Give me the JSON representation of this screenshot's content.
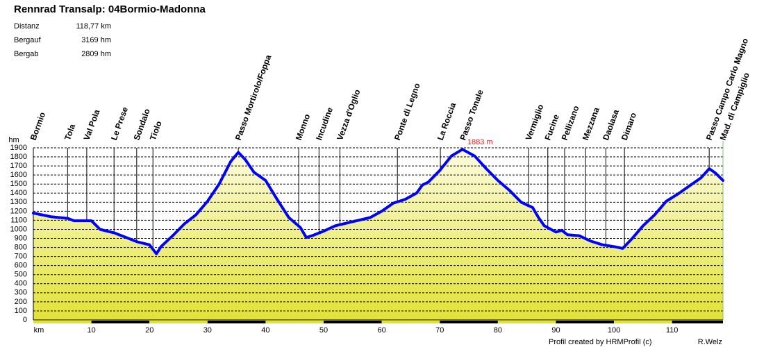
{
  "chart_data": {
    "type": "area",
    "title": "Rennrad Transalp: 04Bormio-Madonna",
    "stats": [
      {
        "label": "Distanz",
        "value": "118,77 km"
      },
      {
        "label": "Bergauf",
        "value": "3169 hm"
      },
      {
        "label": "Bergab",
        "value": "2809 hm"
      }
    ],
    "ylabel": "hm",
    "color": "#0000ff",
    "grid": true,
    "xlim": [
      0,
      118.77
    ],
    "ylim": [
      0,
      1900
    ],
    "xticks": [
      {
        "value": 0,
        "label": "km"
      },
      10,
      20,
      30,
      40,
      50,
      60,
      70,
      80,
      90,
      100,
      110
    ],
    "yticks": [
      0,
      100,
      200,
      300,
      400,
      500,
      600,
      700,
      800,
      900,
      1000,
      1100,
      1200,
      1300,
      1400,
      1500,
      1600,
      1700,
      1800,
      1900
    ],
    "x": [
      0,
      3,
      6,
      7,
      10,
      11.5,
      14,
      16,
      18,
      20,
      21.2,
      22,
      24,
      26,
      28,
      30,
      32,
      34,
      35.3,
      36.5,
      38,
      40,
      42,
      44,
      46,
      47,
      48,
      50,
      52,
      54,
      56,
      58,
      60,
      62,
      64,
      66,
      67,
      68,
      70,
      72,
      73.9,
      76,
      78,
      80,
      82,
      84,
      86,
      87,
      88,
      90,
      91,
      92,
      94,
      96,
      98,
      100,
      101.5,
      103,
      105,
      107,
      109,
      111,
      113,
      115,
      116.4,
      117.5,
      118.77
    ],
    "values": [
      1180,
      1140,
      1120,
      1095,
      1095,
      1000,
      960,
      910,
      860,
      830,
      730,
      810,
      930,
      1060,
      1160,
      1310,
      1500,
      1750,
      1850,
      1770,
      1630,
      1540,
      1330,
      1130,
      1020,
      910,
      930,
      980,
      1040,
      1070,
      1100,
      1130,
      1200,
      1290,
      1330,
      1400,
      1490,
      1520,
      1650,
      1810,
      1883,
      1810,
      1670,
      1540,
      1430,
      1300,
      1240,
      1130,
      1040,
      970,
      990,
      940,
      930,
      870,
      830,
      810,
      790,
      890,
      1040,
      1160,
      1310,
      1390,
      1480,
      1570,
      1670,
      1620,
      1540
    ],
    "max_label": "1883 m",
    "waypoints": [
      {
        "name": "Bormio",
        "km": 0
      },
      {
        "name": "Tola",
        "km": 5.9
      },
      {
        "name": "Val Pola",
        "km": 9.2
      },
      {
        "name": "Le Prese",
        "km": 13.9
      },
      {
        "name": "Sondalo",
        "km": 17.8
      },
      {
        "name": "Tiolo",
        "km": 20.6
      },
      {
        "name": "Passo Mortirolo/Foppa",
        "km": 35.3
      },
      {
        "name": "Monno",
        "km": 45.7
      },
      {
        "name": "Incudine",
        "km": 49.2
      },
      {
        "name": "Vezza d'Oglio",
        "km": 52.8
      },
      {
        "name": "Ponte di Legno",
        "km": 62.7
      },
      {
        "name": "La Roccia",
        "km": 70.1
      },
      {
        "name": "Passo Tonale",
        "km": 74.0
      },
      {
        "name": "Vermiglio",
        "km": 85.3
      },
      {
        "name": "Fucine",
        "km": 88.6
      },
      {
        "name": "Pellizano",
        "km": 91.5
      },
      {
        "name": "Mezzana",
        "km": 95.1
      },
      {
        "name": "Daolasa",
        "km": 98.6
      },
      {
        "name": "Dimaro",
        "km": 101.8
      },
      {
        "name": "Passo Campo Carlo Magno",
        "km": 116.4
      },
      {
        "name": "Mad. di Campiglio",
        "km": 118.77
      }
    ],
    "footer_left": "Profil created by HRMProfil (c)",
    "footer_right": "R.Welz"
  }
}
